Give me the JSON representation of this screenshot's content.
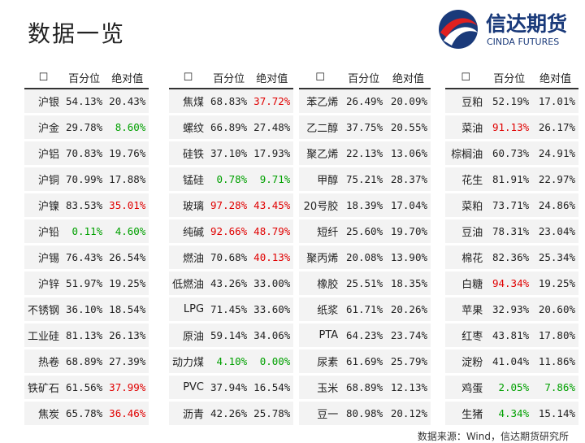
{
  "header": {
    "title": "数据一览",
    "logo_name": "信达期货",
    "logo_sub": "CINDA FUTURES"
  },
  "tables": [
    {
      "columns": [
        "☐",
        "百分位",
        "绝对值"
      ],
      "rows": [
        {
          "name": "沪银",
          "pct": "54.13%",
          "abs": "20.43%"
        },
        {
          "name": "沪金",
          "pct": "29.78%",
          "abs": "8.60%",
          "abs_tone": "green"
        },
        {
          "name": "沪铝",
          "pct": "70.83%",
          "abs": "19.76%"
        },
        {
          "name": "沪铜",
          "pct": "70.99%",
          "abs": "17.88%"
        },
        {
          "name": "沪镍",
          "pct": "83.53%",
          "abs": "35.01%",
          "abs_tone": "red"
        },
        {
          "name": "沪铅",
          "pct": "0.11%",
          "abs": "4.60%",
          "pct_tone": "green",
          "abs_tone": "green"
        },
        {
          "name": "沪锡",
          "pct": "76.43%",
          "abs": "26.54%"
        },
        {
          "name": "沪锌",
          "pct": "51.97%",
          "abs": "19.25%"
        },
        {
          "name": "不锈钢",
          "pct": "36.10%",
          "abs": "18.54%"
        },
        {
          "name": "工业硅",
          "pct": "81.13%",
          "abs": "26.13%"
        },
        {
          "name": "热卷",
          "pct": "68.89%",
          "abs": "27.39%"
        },
        {
          "name": "铁矿石",
          "pct": "61.56%",
          "abs": "37.99%",
          "abs_tone": "red"
        },
        {
          "name": "焦炭",
          "pct": "65.78%",
          "abs": "36.46%",
          "abs_tone": "red"
        }
      ]
    },
    {
      "columns": [
        "☐",
        "百分位",
        "绝对值"
      ],
      "rows": [
        {
          "name": "焦煤",
          "pct": "68.83%",
          "abs": "37.72%",
          "abs_tone": "red"
        },
        {
          "name": "螺纹",
          "pct": "66.89%",
          "abs": "27.48%"
        },
        {
          "name": "硅铁",
          "pct": "37.10%",
          "abs": "17.93%"
        },
        {
          "name": "锰硅",
          "pct": "0.78%",
          "abs": "9.71%",
          "pct_tone": "green",
          "abs_tone": "green"
        },
        {
          "name": "玻璃",
          "pct": "97.28%",
          "abs": "43.45%",
          "pct_tone": "red",
          "abs_tone": "red"
        },
        {
          "name": "纯碱",
          "pct": "92.66%",
          "abs": "48.79%",
          "pct_tone": "red",
          "abs_tone": "red"
        },
        {
          "name": "燃油",
          "pct": "70.68%",
          "abs": "40.13%",
          "abs_tone": "red"
        },
        {
          "name": "低燃油",
          "pct": "43.26%",
          "abs": "33.00%"
        },
        {
          "name": "LPG",
          "pct": "71.45%",
          "abs": "33.60%"
        },
        {
          "name": "原油",
          "pct": "59.14%",
          "abs": "34.06%"
        },
        {
          "name": "动力煤",
          "pct": "4.10%",
          "abs": "0.00%",
          "pct_tone": "green",
          "abs_tone": "green"
        },
        {
          "name": "PVC",
          "pct": "37.94%",
          "abs": "16.54%"
        },
        {
          "name": "沥青",
          "pct": "42.26%",
          "abs": "25.78%"
        }
      ]
    },
    {
      "columns": [
        "☐",
        "百分位",
        "绝对值"
      ],
      "rows": [
        {
          "name": "苯乙烯",
          "pct": "26.49%",
          "abs": "20.09%"
        },
        {
          "name": "乙二醇",
          "pct": "37.75%",
          "abs": "20.55%"
        },
        {
          "name": "聚乙烯",
          "pct": "22.13%",
          "abs": "13.06%"
        },
        {
          "name": "甲醇",
          "pct": "75.21%",
          "abs": "28.37%"
        },
        {
          "name": "20号胶",
          "pct": "18.39%",
          "abs": "17.04%"
        },
        {
          "name": "短纤",
          "pct": "25.60%",
          "abs": "19.70%"
        },
        {
          "name": "聚丙烯",
          "pct": "20.08%",
          "abs": "13.90%"
        },
        {
          "name": "橡胶",
          "pct": "25.51%",
          "abs": "18.35%"
        },
        {
          "name": "纸浆",
          "pct": "61.71%",
          "abs": "20.26%"
        },
        {
          "name": "PTA",
          "pct": "64.23%",
          "abs": "23.74%"
        },
        {
          "name": "尿素",
          "pct": "61.69%",
          "abs": "25.79%"
        },
        {
          "name": "玉米",
          "pct": "68.89%",
          "abs": "12.13%"
        },
        {
          "name": "豆一",
          "pct": "80.98%",
          "abs": "20.12%"
        }
      ]
    },
    {
      "columns": [
        "☐",
        "百分位",
        "绝对值"
      ],
      "rows": [
        {
          "name": "豆粕",
          "pct": "52.19%",
          "abs": "17.01%"
        },
        {
          "name": "菜油",
          "pct": "91.13%",
          "abs": "26.17%",
          "pct_tone": "red"
        },
        {
          "name": "棕榈油",
          "pct": "60.73%",
          "abs": "24.91%"
        },
        {
          "name": "花生",
          "pct": "81.91%",
          "abs": "22.97%"
        },
        {
          "name": "菜粕",
          "pct": "73.71%",
          "abs": "24.86%"
        },
        {
          "name": "豆油",
          "pct": "78.31%",
          "abs": "23.04%"
        },
        {
          "name": "棉花",
          "pct": "82.36%",
          "abs": "25.34%"
        },
        {
          "name": "白糖",
          "pct": "94.34%",
          "abs": "19.25%",
          "pct_tone": "red"
        },
        {
          "name": "苹果",
          "pct": "32.93%",
          "abs": "20.60%"
        },
        {
          "name": "红枣",
          "pct": "43.81%",
          "abs": "17.80%"
        },
        {
          "name": "淀粉",
          "pct": "41.04%",
          "abs": "11.86%"
        },
        {
          "name": "鸡蛋",
          "pct": "2.05%",
          "abs": "7.86%",
          "pct_tone": "green",
          "abs_tone": "green"
        },
        {
          "name": "生猪",
          "pct": "4.34%",
          "abs": "15.14%",
          "pct_tone": "green"
        }
      ]
    }
  ],
  "footer": {
    "source": "数据来源：Wind，信达期货研究所"
  }
}
